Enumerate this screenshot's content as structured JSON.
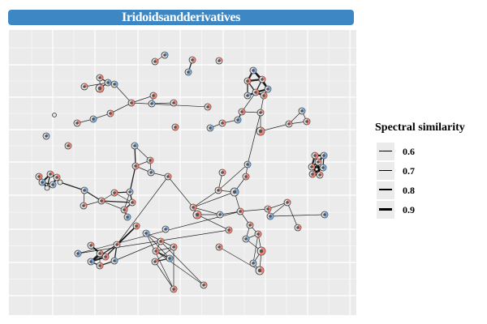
{
  "title": "Iridoidsandderivatives",
  "colors": {
    "title_bg": "#3d87c4",
    "panel_bg": "#ebebeb",
    "grid": "#ffffff",
    "node_fill": "#e4e4e4",
    "edge": "#000000",
    "slice_red": "#f07060",
    "slice_blue": "#6aa0d8"
  },
  "legend": {
    "title": "Spectral similarity",
    "items": [
      {
        "label": "0.6",
        "value": 0.6
      },
      {
        "label": "0.7",
        "value": 0.7
      },
      {
        "label": "0.8",
        "value": 0.8
      },
      {
        "label": "0.9",
        "value": 0.9
      }
    ]
  }
}
